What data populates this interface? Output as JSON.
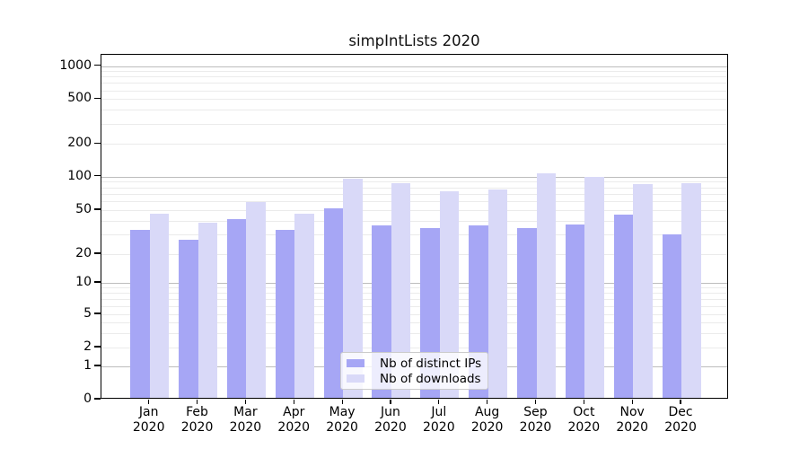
{
  "chart_data": {
    "type": "bar",
    "title": "simpIntLists 2020",
    "x_year": "2020",
    "categories": [
      "Jan",
      "Feb",
      "Mar",
      "Apr",
      "May",
      "Jun",
      "Jul",
      "Aug",
      "Sep",
      "Oct",
      "Nov",
      "Dec"
    ],
    "series": [
      {
        "name": "Nb of distinct IPs",
        "color": "#a6a6f5",
        "values": [
          32,
          26,
          40,
          32,
          50,
          35,
          33,
          35,
          33,
          36,
          44,
          29
        ]
      },
      {
        "name": "Nb of downloads",
        "color": "#d9d9f8",
        "values": [
          45,
          37,
          57,
          45,
          92,
          84,
          71,
          74,
          103,
          95,
          82,
          84
        ]
      }
    ],
    "y_axis": {
      "scale": "symlog",
      "ticks": [
        0,
        1,
        2,
        5,
        10,
        20,
        50,
        100,
        200,
        500,
        1000
      ],
      "grid": "both"
    },
    "x_axis": {
      "label_format": "month over year, two lines"
    },
    "legend": {
      "position": "inside-lower-center",
      "entries": [
        "Nb of distinct IPs",
        "Nb of downloads"
      ]
    },
    "colors": {
      "distinct_ips_bar": "#a6a6f5",
      "downloads_bar": "#d9d9f8",
      "major_grid": "#bdbdbd",
      "minor_grid": "#ebebeb",
      "spine": "#000000",
      "legend_border": "#cccccc"
    }
  }
}
